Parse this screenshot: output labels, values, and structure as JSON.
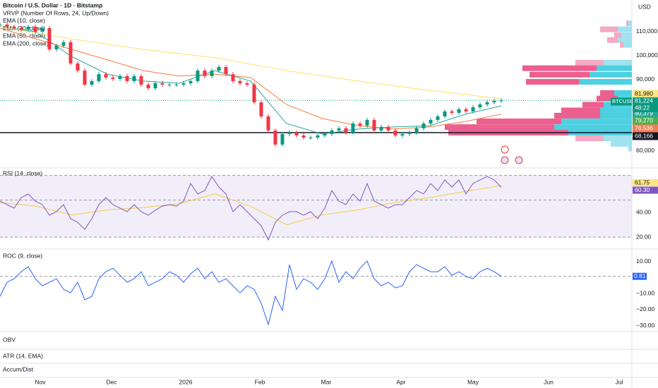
{
  "header": {
    "symbol": "Bitcoin / U.S. Dollar · 1D · Bitstamp",
    "currency": "USD",
    "indicators": [
      "VRVP (Number Of Rows, 24, Up/Down)",
      "EMA (10, close)",
      "EMA (20, close)",
      "EMA (50, close)",
      "EMA (200, close)"
    ]
  },
  "price_pane": {
    "ylim": [
      52900,
      123300
    ],
    "yticks": [
      {
        "value": 110000,
        "label": "110,000"
      },
      {
        "value": 100000,
        "label": "100,000"
      },
      {
        "value": 90000,
        "label": "90,000"
      },
      {
        "value": 60000,
        "label": "60,000"
      }
    ],
    "closes": [
      113000,
      112100,
      111500,
      110900,
      112100,
      110000,
      111500,
      102600,
      104100,
      105600,
      96700,
      93700,
      87800,
      89300,
      92200,
      90800,
      90200,
      91400,
      89300,
      91400,
      87800,
      86300,
      88400,
      87800,
      87800,
      87800,
      88400,
      89300,
      93700,
      91400,
      93700,
      95200,
      92200,
      89300,
      88400,
      87800,
      80400,
      74500,
      68600,
      62700,
      67100,
      67700,
      66500,
      65600,
      65600,
      66500,
      67100,
      68600,
      69500,
      67700,
      71500,
      70600,
      73000,
      68600,
      70100,
      68600,
      66500,
      67100,
      67700,
      69500,
      71500,
      73000,
      74500,
      76600,
      76000,
      77500,
      76600,
      78300,
      79500,
      80400,
      81000,
      81224
    ],
    "up_color": "#089981",
    "down_color": "#f23645",
    "emas": [
      {
        "color": "#26a69a",
        "values": [
          112100,
          110000,
          99600,
          92200,
          89300,
          88400,
          93700,
          89300,
          71500,
          67100,
          69200,
          70100,
          70600,
          75400,
          78900
        ]
      },
      {
        "color": "#f57c3c",
        "values": [
          111500,
          107000,
          102600,
          98200,
          93700,
          91400,
          92200,
          90800,
          79500,
          73600,
          70600,
          69200,
          70100,
          72400,
          75400
        ]
      },
      {
        "color": "#f7e36a",
        "values": [
          112100,
          107000,
          102600,
          99100,
          93700,
          89300,
          85400,
          81900
        ]
      }
    ],
    "hline": 67700,
    "last_price": {
      "value": 81224,
      "label": "81,224",
      "symbol": "BTCUSD",
      "countdown": "48:22",
      "color": "#089981"
    },
    "tags": [
      {
        "value": 81980,
        "label": "81,980",
        "color": "#ffe57f"
      },
      {
        "value": 80379,
        "label": "80,379",
        "color": "#26a69a"
      },
      {
        "value": 79270,
        "label": "79,270",
        "color": "#4caf50"
      },
      {
        "value": 76536,
        "label": "76,536",
        "color": "#f57c54"
      },
      {
        "value": 68166,
        "label": "68,166",
        "color": "#131722"
      }
    ],
    "volume_profile": {
      "value_area": [
        66000,
        95000
      ],
      "rows": [
        {
          "price": 113500,
          "up": 5,
          "down": 3
        },
        {
          "price": 111000,
          "up": 20,
          "down": 25
        },
        {
          "price": 108500,
          "up": 15,
          "down": 10
        },
        {
          "price": 106500,
          "up": 20,
          "down": 15
        },
        {
          "price": 104500,
          "up": 12,
          "down": 5
        },
        {
          "price": 97000,
          "up": 40,
          "down": 40
        },
        {
          "price": 94700,
          "up": 50,
          "down": 105
        },
        {
          "price": 92000,
          "up": 60,
          "down": 85
        },
        {
          "price": 89000,
          "up": 75,
          "down": 75
        },
        {
          "price": 84300,
          "up": 25,
          "down": 20
        },
        {
          "price": 82000,
          "up": 20,
          "down": 30
        },
        {
          "price": 79400,
          "up": 40,
          "down": 30
        },
        {
          "price": 77000,
          "up": 45,
          "down": 55
        },
        {
          "price": 74800,
          "up": 45,
          "down": 65
        },
        {
          "price": 72400,
          "up": 100,
          "down": 120
        },
        {
          "price": 70000,
          "up": 110,
          "down": 155
        },
        {
          "price": 67700,
          "up": 90,
          "down": 170
        },
        {
          "price": 65300,
          "up": 40,
          "down": 40
        },
        {
          "price": 63000,
          "up": 30,
          "down": 0
        },
        {
          "price": 61000,
          "up": 5,
          "down": 0
        }
      ]
    }
  },
  "rsi_pane": {
    "title": "RSI (14, close)",
    "ylim": [
      10.9,
      74.9
    ],
    "bands": [
      70,
      50,
      20
    ],
    "yticks": [
      {
        "value": 40,
        "label": "40.00"
      },
      {
        "value": 20,
        "label": "20.00"
      }
    ],
    "values": [
      49.1,
      46.3,
      43.4,
      52,
      54.9,
      49.1,
      46.3,
      37.7,
      40.6,
      46.3,
      34.9,
      32,
      26.3,
      34.9,
      46.3,
      52,
      46.3,
      43.4,
      40.6,
      46.3,
      40.6,
      37.7,
      41.7,
      45.1,
      46.3,
      45.1,
      49.1,
      63.4,
      54.9,
      57.7,
      69.1,
      60.6,
      54.9,
      40.6,
      46.3,
      40.6,
      34.9,
      29.1,
      17.7,
      32,
      37.7,
      40.6,
      40.6,
      37.7,
      40.6,
      34.9,
      43.4,
      57.7,
      49.1,
      46.3,
      54.9,
      49.1,
      63.4,
      49.1,
      46.3,
      43.4,
      46.3,
      46.3,
      52,
      57.7,
      54.9,
      63.4,
      57.7,
      66.3,
      60.6,
      66.3,
      54.9,
      63.4,
      66.3,
      69.1,
      66.3,
      60.3
    ],
    "ma": [
      48,
      45,
      38,
      42,
      44,
      47,
      55,
      45,
      30,
      38,
      42,
      48,
      52,
      57,
      61.75
    ],
    "tags": [
      {
        "value": 61.75,
        "label": "61.75",
        "color": "#ffe57f"
      },
      {
        "value": 60.3,
        "label": "60.30",
        "color": "#7e57c2"
      }
    ]
  },
  "roc_pane": {
    "title": "ROC (9, close)",
    "ylim": [
      -33.7,
      17
    ],
    "yticks": [
      {
        "value": 10,
        "label": "10.00"
      },
      {
        "value": -10,
        "label": "−10.00"
      },
      {
        "value": -20,
        "label": "−20.00"
      },
      {
        "value": -30,
        "label": "−30.00"
      }
    ],
    "values": [
      -11.7,
      -2.9,
      -0.7,
      3.7,
      6.8,
      -0.7,
      -5.1,
      -2.9,
      -0.7,
      -7.3,
      -9.5,
      -2.9,
      -13.9,
      -11.7,
      -0.7,
      3.7,
      5.9,
      1.5,
      -2.9,
      -0.7,
      3.7,
      -5.1,
      -2.9,
      -0.7,
      3.7,
      1.5,
      -2.9,
      2.4,
      5.9,
      -0.7,
      3.7,
      -2.9,
      -0.7,
      -5.1,
      -9.5,
      -5.1,
      -7.3,
      -16.1,
      -29.3,
      -11.7,
      -20.5,
      8.1,
      -7.3,
      -0.7,
      -2.9,
      -7.3,
      -0.7,
      10.4,
      -2.9,
      3.7,
      -0.7,
      5.9,
      10.4,
      -0.7,
      -5.1,
      -2.9,
      -6.4,
      -5.1,
      3.7,
      8.1,
      5.9,
      3.7,
      3.7,
      6.8,
      1.5,
      3.7,
      0.7,
      -0.7,
      3.7,
      5.9,
      3.7,
      0.81
    ],
    "tag": {
      "value": 0.81,
      "label": "0.81",
      "color": "#2962ff"
    }
  },
  "empty_panes": [
    "OBV",
    "ATR (14, EMA)",
    "Accum/Dist"
  ],
  "x_axis": [
    "Nov",
    "Dec",
    "2026",
    "Feb",
    "Mar",
    "Apr",
    "May",
    "Jun",
    "Jul"
  ]
}
